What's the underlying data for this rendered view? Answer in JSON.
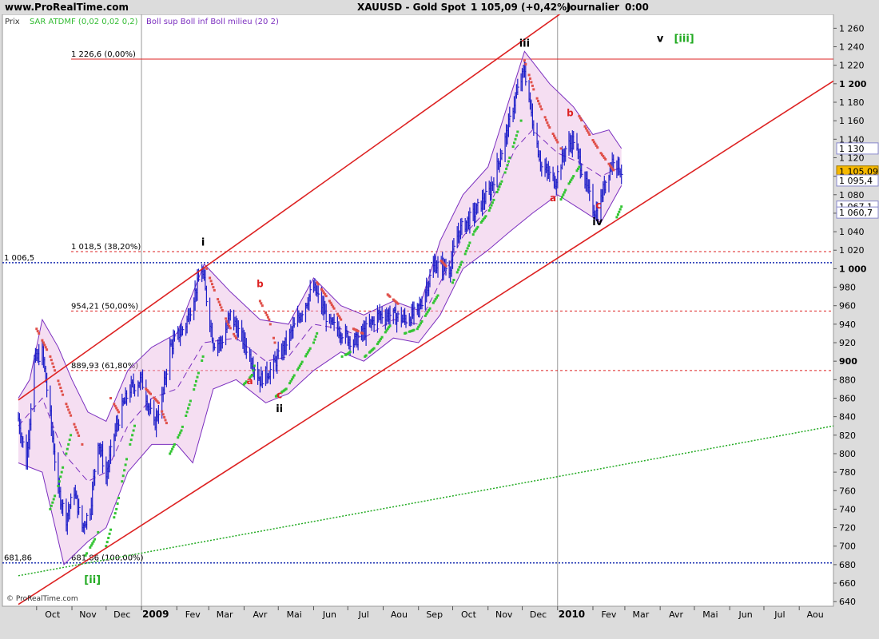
{
  "header": {
    "site": "www.ProRealTime.com",
    "instrument": "XAUUSD - Gold Spot",
    "quote": "1 105,09 (+0,42%)",
    "period": "Journalier",
    "time": "0:00"
  },
  "legend": {
    "prix": "Prix",
    "sar": "SAR ATDMF (0,02 0,02 0,2)",
    "boll": "Boll sup Boll inf Boll milieu (20 2)"
  },
  "copyright": "© ProRealTime.com",
  "colors": {
    "bar": "#1f1fc8",
    "sar_up": "#33c533",
    "sar_down": "#e0504a",
    "band_line": "#7b2fbf",
    "band_fill": "#e8b6e2",
    "channel": "#dd2222",
    "fib": "#dd2222",
    "blue_level": "#1a2fb0",
    "trend_green": "#22aa22",
    "axis_bg": "#dcdcdc"
  },
  "chart_data": {
    "type": "line",
    "title": "XAUUSD - Gold Spot",
    "ylim": [
      635,
      1275
    ],
    "y_ticks": [
      640,
      660,
      680,
      700,
      720,
      740,
      760,
      780,
      800,
      820,
      840,
      860,
      880,
      900,
      920,
      940,
      960,
      980,
      1000,
      1020,
      1040,
      1060,
      1080,
      1100,
      1120,
      1140,
      1160,
      1180,
      1200,
      1220,
      1240,
      1260
    ],
    "y_tick_labels": [
      "640",
      "660",
      "680",
      "700",
      "720",
      "740",
      "760",
      "780",
      "800",
      "820",
      "840",
      "860",
      "880",
      "900",
      "920",
      "940",
      "960",
      "980",
      "1 000",
      "1 020",
      "1 040",
      "1 060",
      "1 080",
      "1 100",
      "1 120",
      "1 140",
      "1 160",
      "1 180",
      "1 200",
      "1 220",
      "1 240",
      "1 260"
    ],
    "bold_ticks": [
      "900",
      "1 000",
      "1 200"
    ],
    "x_months": [
      "Oct",
      "Nov",
      "Dec",
      "2009",
      "Fev",
      "Mar",
      "Avr",
      "Mai",
      "Jun",
      "Jul",
      "Aou",
      "Sep",
      "Oct",
      "Nov",
      "Dec",
      "2010",
      "Fev",
      "Mar",
      "Avr",
      "Mai",
      "Jun",
      "Jul",
      "Aou"
    ],
    "x_month_dates": [
      "2008-10",
      "2008-11",
      "2008-12",
      "2009-01",
      "2009-02",
      "2009-03",
      "2009-04",
      "2009-05",
      "2009-06",
      "2009-07",
      "2009-08",
      "2009-09",
      "2009-10",
      "2009-11",
      "2009-12",
      "2010-01",
      "2010-02",
      "2010-03",
      "2010-04",
      "2010-05",
      "2010-06",
      "2010-07",
      "2010-08"
    ],
    "bold_months": [
      "2009",
      "2010"
    ],
    "price_path": [
      [
        "2008-09-15",
        838
      ],
      [
        "2008-09-22",
        790
      ],
      [
        "2008-09-29",
        900
      ],
      [
        "2008-10-06",
        910
      ],
      [
        "2008-10-13",
        840
      ],
      [
        "2008-10-20",
        760
      ],
      [
        "2008-10-27",
        730
      ],
      [
        "2008-11-03",
        760
      ],
      [
        "2008-11-10",
        720
      ],
      [
        "2008-11-17",
        740
      ],
      [
        "2008-11-24",
        815
      ],
      [
        "2008-12-01",
        775
      ],
      [
        "2008-12-08",
        820
      ],
      [
        "2008-12-15",
        850
      ],
      [
        "2008-12-22",
        870
      ],
      [
        "2009-01-01",
        880
      ],
      [
        "2009-01-12",
        830
      ],
      [
        "2009-01-19",
        860
      ],
      [
        "2009-01-26",
        915
      ],
      [
        "2009-02-09",
        940
      ],
      [
        "2009-02-23",
        1000
      ],
      [
        "2009-03-05",
        920
      ],
      [
        "2009-03-12",
        920
      ],
      [
        "2009-03-20",
        950
      ],
      [
        "2009-04-01",
        920
      ],
      [
        "2009-04-15",
        880
      ],
      [
        "2009-04-24",
        890
      ],
      [
        "2009-05-06",
        915
      ],
      [
        "2009-05-20",
        950
      ],
      [
        "2009-06-01",
        980
      ],
      [
        "2009-06-15",
        940
      ],
      [
        "2009-06-22",
        935
      ],
      [
        "2009-07-06",
        920
      ],
      [
        "2009-07-14",
        930
      ],
      [
        "2009-07-28",
        950
      ],
      [
        "2009-08-07",
        950
      ],
      [
        "2009-08-21",
        945
      ],
      [
        "2009-09-01",
        955
      ],
      [
        "2009-09-15",
        1005
      ],
      [
        "2009-09-28",
        1000
      ],
      [
        "2009-10-06",
        1040
      ],
      [
        "2009-10-20",
        1060
      ],
      [
        "2009-11-03",
        1085
      ],
      [
        "2009-11-16",
        1140
      ],
      [
        "2009-11-25",
        1185
      ],
      [
        "2009-12-03",
        1215
      ],
      [
        "2009-12-10",
        1160
      ],
      [
        "2009-12-18",
        1110
      ],
      [
        "2009-12-30",
        1095
      ],
      [
        "2010-01-08",
        1130
      ],
      [
        "2010-01-15",
        1140
      ],
      [
        "2010-01-25",
        1095
      ],
      [
        "2010-02-01",
        1065
      ],
      [
        "2010-02-05",
        1060
      ],
      [
        "2010-02-12",
        1095
      ],
      [
        "2010-02-19",
        1120
      ],
      [
        "2010-02-26",
        1105
      ]
    ],
    "bollinger_upper": [
      [
        "2008-09-15",
        860
      ],
      [
        "2008-09-25",
        880
      ],
      [
        "2008-10-06",
        945
      ],
      [
        "2008-10-20",
        915
      ],
      [
        "2008-11-01",
        880
      ],
      [
        "2008-11-15",
        845
      ],
      [
        "2008-12-01",
        835
      ],
      [
        "2008-12-20",
        890
      ],
      [
        "2009-01-10",
        915
      ],
      [
        "2009-02-01",
        930
      ],
      [
        "2009-02-25",
        1005
      ],
      [
        "2009-03-20",
        975
      ],
      [
        "2009-04-15",
        945
      ],
      [
        "2009-05-10",
        940
      ],
      [
        "2009-06-01",
        990
      ],
      [
        "2009-06-25",
        960
      ],
      [
        "2009-07-15",
        950
      ],
      [
        "2009-08-10",
        965
      ],
      [
        "2009-09-01",
        955
      ],
      [
        "2009-09-20",
        1030
      ],
      [
        "2009-10-10",
        1080
      ],
      [
        "2009-11-01",
        1110
      ],
      [
        "2009-12-03",
        1235
      ],
      [
        "2009-12-25",
        1200
      ],
      [
        "2010-01-15",
        1175
      ],
      [
        "2010-02-01",
        1145
      ],
      [
        "2010-02-15",
        1150
      ],
      [
        "2010-02-26",
        1130
      ]
    ],
    "bollinger_lower": [
      [
        "2008-09-15",
        790
      ],
      [
        "2008-10-06",
        780
      ],
      [
        "2008-10-25",
        680
      ],
      [
        "2008-11-15",
        705
      ],
      [
        "2008-12-01",
        720
      ],
      [
        "2008-12-20",
        780
      ],
      [
        "2009-01-10",
        810
      ],
      [
        "2009-02-01",
        810
      ],
      [
        "2009-02-15",
        790
      ],
      [
        "2009-03-05",
        870
      ],
      [
        "2009-03-25",
        880
      ],
      [
        "2009-04-20",
        855
      ],
      [
        "2009-05-10",
        865
      ],
      [
        "2009-06-01",
        890
      ],
      [
        "2009-06-25",
        910
      ],
      [
        "2009-07-15",
        900
      ],
      [
        "2009-08-10",
        925
      ],
      [
        "2009-09-01",
        920
      ],
      [
        "2009-09-20",
        950
      ],
      [
        "2009-10-10",
        1000
      ],
      [
        "2009-11-01",
        1020
      ],
      [
        "2009-11-20",
        1040
      ],
      [
        "2009-12-10",
        1060
      ],
      [
        "2010-01-01",
        1080
      ],
      [
        "2010-01-20",
        1065
      ],
      [
        "2010-02-08",
        1050
      ],
      [
        "2010-02-26",
        1090
      ]
    ],
    "bollinger_mid": [
      [
        "2008-09-15",
        830
      ],
      [
        "2008-10-06",
        860
      ],
      [
        "2008-10-25",
        800
      ],
      [
        "2008-11-15",
        770
      ],
      [
        "2008-12-01",
        780
      ],
      [
        "2008-12-20",
        830
      ],
      [
        "2009-01-10",
        860
      ],
      [
        "2009-02-01",
        870
      ],
      [
        "2009-02-25",
        920
      ],
      [
        "2009-03-25",
        925
      ],
      [
        "2009-04-20",
        900
      ],
      [
        "2009-05-10",
        905
      ],
      [
        "2009-06-01",
        940
      ],
      [
        "2009-06-25",
        935
      ],
      [
        "2009-07-15",
        925
      ],
      [
        "2009-08-10",
        945
      ],
      [
        "2009-09-01",
        940
      ],
      [
        "2009-09-20",
        985
      ],
      [
        "2009-10-10",
        1035
      ],
      [
        "2009-11-01",
        1065
      ],
      [
        "2009-11-25",
        1130
      ],
      [
        "2009-12-10",
        1150
      ],
      [
        "2010-01-01",
        1125
      ],
      [
        "2010-01-20",
        1115
      ],
      [
        "2010-02-08",
        1100
      ],
      [
        "2010-02-26",
        1110
      ]
    ],
    "sar_up_segments": [
      [
        [
          "2008-10-13",
          740
        ],
        [
          "2008-10-20",
          765
        ],
        [
          "2008-10-27",
          800
        ],
        [
          "2008-11-01",
          825
        ]
      ],
      [
        [
          "2008-11-13",
          690
        ],
        [
          "2008-11-20",
          705
        ],
        [
          "2008-11-24",
          715
        ]
      ],
      [
        [
          "2008-12-01",
          700
        ],
        [
          "2008-12-10",
          740
        ],
        [
          "2008-12-20",
          800
        ],
        [
          "2008-12-28",
          840
        ]
      ],
      [
        [
          "2009-01-26",
          800
        ],
        [
          "2009-02-05",
          825
        ],
        [
          "2009-02-15",
          865
        ],
        [
          "2009-02-24",
          905
        ]
      ],
      [
        [
          "2009-04-01",
          875
        ],
        [
          "2009-04-08",
          885
        ],
        [
          "2009-04-10",
          895
        ]
      ],
      [
        [
          "2009-04-29",
          862
        ],
        [
          "2009-05-08",
          870
        ],
        [
          "2009-05-20",
          895
        ],
        [
          "2009-06-01",
          920
        ],
        [
          "2009-06-04",
          930
        ]
      ],
      [
        [
          "2009-06-26",
          905
        ],
        [
          "2009-07-01",
          908
        ],
        [
          "2009-07-03",
          910
        ]
      ],
      [
        [
          "2009-07-16",
          905
        ],
        [
          "2009-07-25",
          915
        ],
        [
          "2009-08-05",
          935
        ],
        [
          "2009-08-08",
          940
        ]
      ],
      [
        [
          "2009-08-20",
          930
        ],
        [
          "2009-08-31",
          935
        ],
        [
          "2009-09-10",
          955
        ],
        [
          "2009-09-20",
          975
        ]
      ],
      [
        [
          "2009-10-01",
          985
        ],
        [
          "2009-10-10",
          1010
        ],
        [
          "2009-10-20",
          1040
        ],
        [
          "2009-11-01",
          1060
        ],
        [
          "2009-11-15",
          1100
        ],
        [
          "2009-11-30",
          1160
        ]
      ],
      [
        [
          "2010-01-04",
          1075
        ],
        [
          "2010-01-10",
          1090
        ],
        [
          "2010-01-20",
          1110
        ]
      ],
      [
        [
          "2010-02-20",
          1050
        ],
        [
          "2010-02-27",
          1070
        ]
      ]
    ],
    "sar_down_segments": [
      [
        [
          "2008-10-01",
          935
        ],
        [
          "2008-10-13",
          905
        ],
        [
          "2008-10-25",
          860
        ],
        [
          "2008-11-10",
          810
        ]
      ],
      [
        [
          "2008-12-05",
          860
        ],
        [
          "2008-12-12",
          845
        ]
      ],
      [
        [
          "2009-01-05",
          870
        ],
        [
          "2009-01-16",
          855
        ],
        [
          "2009-01-24",
          830
        ]
      ],
      [
        [
          "2009-02-27",
          1000
        ],
        [
          "2009-03-08",
          970
        ],
        [
          "2009-03-18",
          940
        ],
        [
          "2009-03-25",
          925
        ]
      ],
      [
        [
          "2009-04-15",
          965
        ],
        [
          "2009-04-23",
          945
        ],
        [
          "2009-04-28",
          920
        ]
      ],
      [
        [
          "2009-06-04",
          985
        ],
        [
          "2009-06-15",
          965
        ],
        [
          "2009-06-25",
          945
        ]
      ],
      [
        [
          "2009-07-06",
          935
        ],
        [
          "2009-07-14",
          930
        ]
      ],
      [
        [
          "2009-08-05",
          972
        ],
        [
          "2009-08-16",
          960
        ]
      ],
      [
        [
          "2009-09-20",
          1010
        ],
        [
          "2009-09-27",
          1000
        ]
      ],
      [
        [
          "2009-12-03",
          1225
        ],
        [
          "2009-12-12",
          1190
        ],
        [
          "2009-12-24",
          1155
        ],
        [
          "2010-01-04",
          1130
        ]
      ],
      [
        [
          "2010-01-20",
          1165
        ],
        [
          "2010-01-29",
          1145
        ],
        [
          "2010-02-08",
          1125
        ],
        [
          "2010-02-20",
          1105
        ]
      ]
    ],
    "channel_lines": [
      {
        "name": "upper",
        "from": [
          "2008-09-15",
          858
        ],
        "to": [
          "2010-01-05",
          1277
        ]
      },
      {
        "name": "lower",
        "from": [
          "2008-09-15",
          637
        ],
        "to": [
          "2010-08-31",
          1203
        ]
      }
    ],
    "green_trend": {
      "from": [
        "2008-09-15",
        668
      ],
      "to": [
        "2010-08-31",
        830
      ]
    },
    "blue_levels": [
      {
        "value": 1006.5,
        "label": "1 006,5"
      },
      {
        "value": 681.86,
        "label": "681,86"
      }
    ],
    "fib_levels": [
      {
        "value": 1226.6,
        "label": "1 226,6 (0,00%)",
        "style": "solid"
      },
      {
        "value": 1018.5,
        "label": "1 018,5 (38,20%)",
        "style": "dashed"
      },
      {
        "value": 954.21,
        "label": "954,21 (50,00%)",
        "style": "dashed"
      },
      {
        "value": 889.93,
        "label": "889,93 (61,80%)",
        "style": "dashed"
      },
      {
        "value": 681.86,
        "label": "681,86 (100,00%)",
        "style": "none"
      }
    ],
    "price_boxes": [
      {
        "value": 1130,
        "label": "1 130",
        "style": "white"
      },
      {
        "value": 1105.09,
        "label": "1 105,09",
        "style": "gold"
      },
      {
        "value": 1095.4,
        "label": "1 095,4",
        "style": "white"
      },
      {
        "value": 1067.1,
        "label": "1 067,1",
        "style": "white"
      },
      {
        "value": 1060.7,
        "label": "1 060,7",
        "style": "white"
      }
    ],
    "wave_labels": [
      {
        "text": "i",
        "at": [
          "2009-02-24",
          1025
        ],
        "color": "black"
      },
      {
        "text": "ii",
        "at": [
          "2009-05-02",
          845
        ],
        "color": "black"
      },
      {
        "text": "iii",
        "at": [
          "2009-12-03",
          1240
        ],
        "color": "black"
      },
      {
        "text": "iv",
        "at": [
          "2010-02-05",
          1047
        ],
        "color": "black"
      },
      {
        "text": "v",
        "at": [
          "2010-04-01",
          1245
        ],
        "color": "black"
      },
      {
        "text": "[iii]",
        "at": [
          "2010-04-22",
          1245
        ],
        "color": "green"
      },
      {
        "text": "[ii]",
        "at": [
          "2008-11-19",
          660
        ],
        "color": "green"
      },
      {
        "text": "a",
        "at": [
          "2009-04-06",
          875
        ],
        "color": "red"
      },
      {
        "text": "b",
        "at": [
          "2009-04-15",
          980
        ],
        "color": "red"
      },
      {
        "text": "c",
        "at": [
          "2009-05-02",
          860
        ],
        "color": "red"
      },
      {
        "text": "a",
        "at": [
          "2009-12-28",
          1073
        ],
        "color": "red"
      },
      {
        "text": "b",
        "at": [
          "2010-01-12",
          1165
        ],
        "color": "red"
      },
      {
        "text": "c",
        "at": [
          "2010-02-06",
          1065
        ],
        "color": "red"
      }
    ]
  }
}
